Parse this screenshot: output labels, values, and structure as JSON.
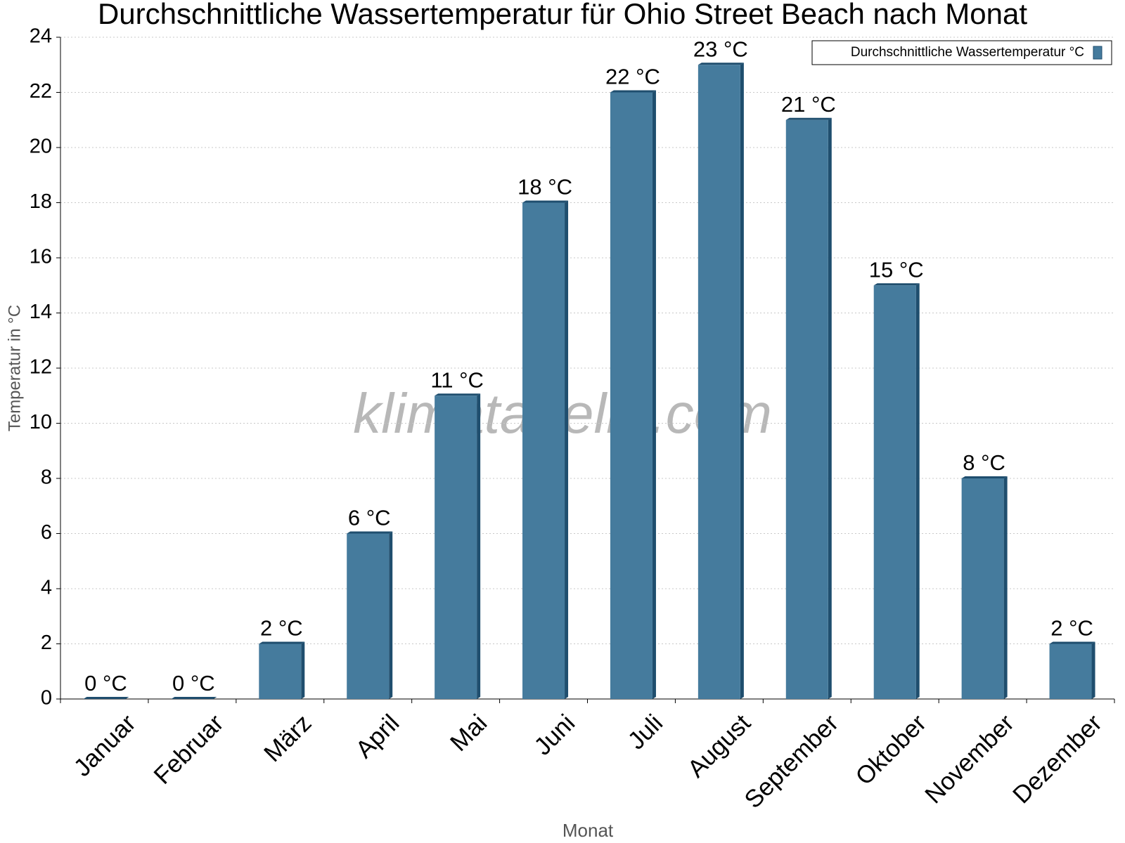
{
  "chart_data": {
    "type": "bar",
    "title": "Durchschnittliche Wassertemperatur für Ohio Street Beach nach Monat",
    "watermark": "klimatabelle.com",
    "x_label": "Monat",
    "y_label": "Temperatur in °C",
    "categories": [
      "Januar",
      "Februar",
      "März",
      "April",
      "Mai",
      "Juni",
      "Juli",
      "August",
      "September",
      "Oktober",
      "November",
      "Dezember"
    ],
    "series": [
      {
        "name": "Durchschnittliche Wassertemperatur °C",
        "color": "#457b9d",
        "values": [
          0,
          0,
          2,
          6,
          11,
          18,
          22,
          23,
          21,
          15,
          8,
          2
        ],
        "value_labels": [
          "0 °C",
          "0 °C",
          "2 °C",
          "6 °C",
          "11 °C",
          "18 °C",
          "22 °C",
          "23 °C",
          "21 °C",
          "15 °C",
          "8 °C",
          "2 °C"
        ]
      }
    ],
    "ylim": [
      0,
      24
    ],
    "yticks": [
      0,
      2,
      4,
      6,
      8,
      10,
      12,
      14,
      16,
      18,
      20,
      22,
      24
    ],
    "grid": true,
    "legend": "top-right"
  }
}
